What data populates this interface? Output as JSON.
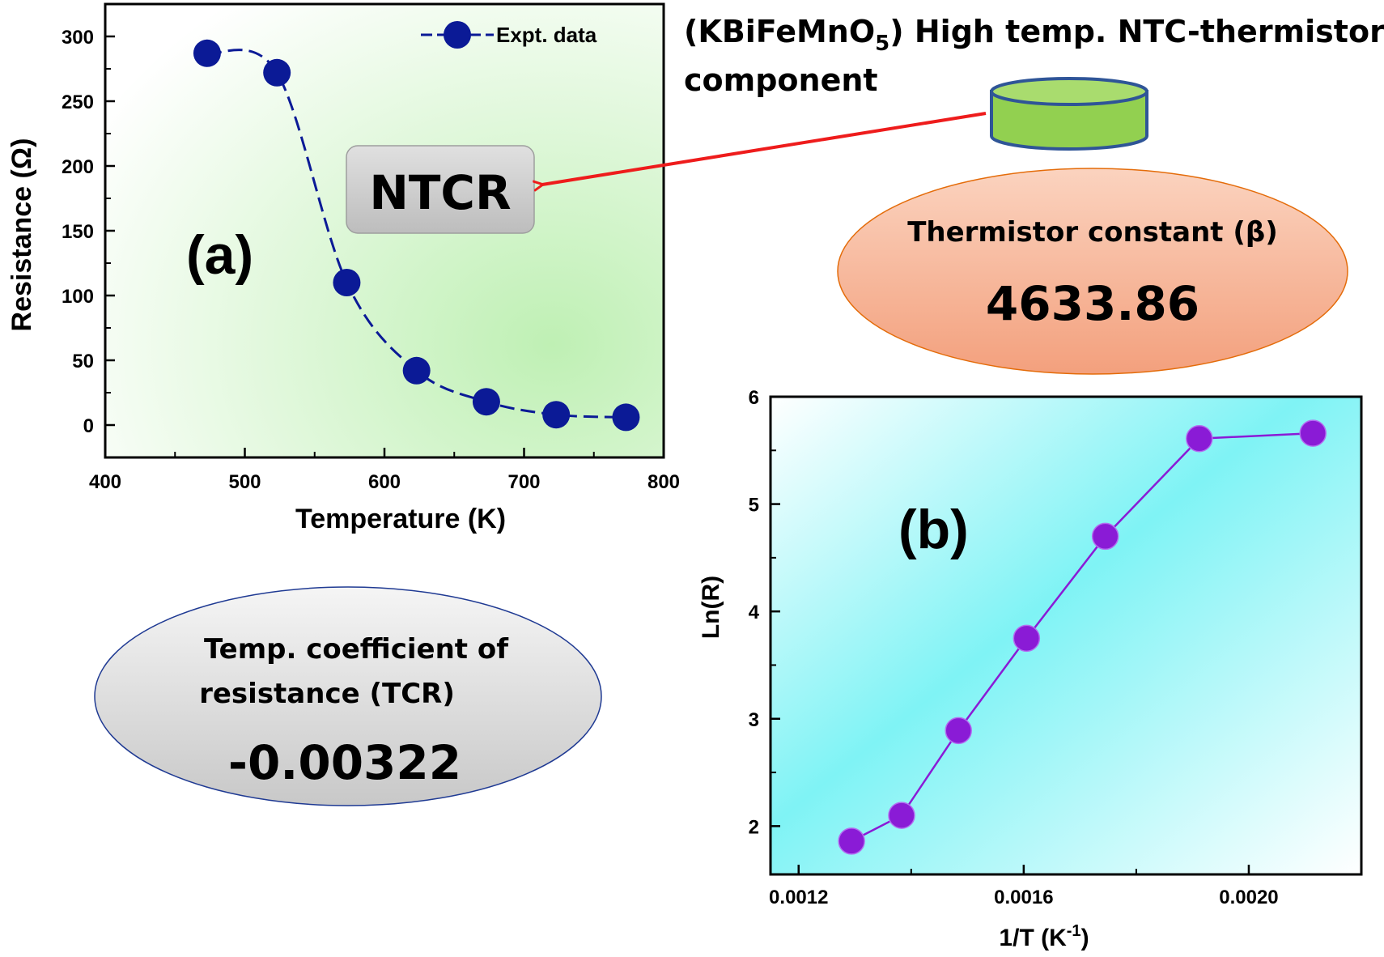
{
  "header": {
    "title_line1_prefix": "(KBiFeMnO",
    "title_line1_subscript": "5",
    "title_line1_suffix": ") High temp. NTC-thermistor",
    "title_line2": "component"
  },
  "callouts": {
    "ntcr_label": "NTCR",
    "beta_label": "Thermistor constant (β)",
    "beta_value": "4633.86",
    "tcr_label_line1": "Temp. coefficient of",
    "tcr_label_line2": "resistance (TCR)",
    "tcr_value": "-0.00322"
  },
  "colors": {
    "panel_a_bg": "#d6f5cf",
    "panel_a_series": "#0b1a96",
    "panel_b_bg": "#7ff3f5",
    "panel_b_series": "#8a1bd6",
    "arrow": "#ee1c1c",
    "component_fill": "#92d050",
    "component_stroke": "#2f5597",
    "beta_ellipse": "#f4a582",
    "tcr_ellipse": "#d9d9d9",
    "ntcr_box": "#c9c9c9"
  },
  "chart_data": [
    {
      "panel_label": "(a)",
      "type": "line",
      "style": "markers with dashed smooth line",
      "xlabel": "Temperature (K)",
      "ylabel": "Resistance (Ω)",
      "xlim": [
        400,
        800
      ],
      "ylim": [
        -25,
        325
      ],
      "x_ticks": [
        400,
        500,
        600,
        700,
        800
      ],
      "y_ticks": [
        0,
        50,
        100,
        150,
        200,
        250,
        300
      ],
      "legend": "top-right",
      "grid": false,
      "series": [
        {
          "name": "Expt. data",
          "x": [
            473,
            523,
            573,
            623,
            673,
            723,
            773
          ],
          "y": [
            287,
            272,
            110,
            42,
            18,
            8,
            6
          ]
        }
      ]
    },
    {
      "panel_label": "(b)",
      "type": "line",
      "style": "markers with solid line",
      "xlabel_base": "1/T (K",
      "xlabel_sup": "-1",
      "xlabel_end": ")",
      "ylabel": "Ln(R)",
      "xlim": [
        0.00115,
        0.0022
      ],
      "ylim": [
        1.55,
        6.0
      ],
      "x_ticks": [
        "0.0012",
        "0.0016",
        "0.0020"
      ],
      "y_ticks": [
        2,
        3,
        4,
        5,
        6
      ],
      "grid": false,
      "series": [
        {
          "x": [
            0.001294,
            0.001383,
            0.001484,
            0.001605,
            0.001745,
            0.001912,
            0.002114
          ],
          "y": [
            1.86,
            2.1,
            2.89,
            3.75,
            4.7,
            5.61,
            5.66
          ]
        }
      ]
    }
  ]
}
